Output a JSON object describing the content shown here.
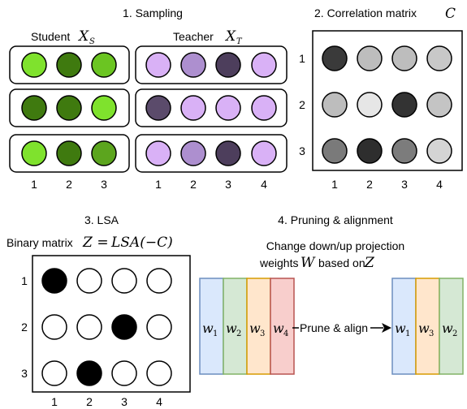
{
  "sampling": {
    "title": "1. Sampling",
    "student_label": "Student",
    "student_var": "X",
    "student_sub": "S",
    "teacher_label": "Teacher",
    "teacher_var": "X",
    "teacher_sub": "T",
    "student_rows": [
      [
        "#7fe22d",
        "#3f7a0f",
        "#6bc522"
      ],
      [
        "#3f7a0f",
        "#3f7a0f",
        "#7fe22d"
      ],
      [
        "#7fe22d",
        "#3f7a0f",
        "#5ca51e"
      ]
    ],
    "teacher_rows": [
      [
        "#d9b1f6",
        "#ad8fcf",
        "#4d3e5c",
        "#d9b1f6"
      ],
      [
        "#5b4b6b",
        "#d9b1f6",
        "#d9b1f6",
        "#d9b1f6"
      ],
      [
        "#d9b1f6",
        "#ad8fcf",
        "#4d3e5c",
        "#d9b1f6"
      ]
    ],
    "student_cols": [
      "1",
      "2",
      "3"
    ],
    "teacher_cols": [
      "1",
      "2",
      "3",
      "4"
    ]
  },
  "correlation": {
    "title": "2. Correlation matrix",
    "var": "C",
    "rows": [
      "1",
      "2",
      "3"
    ],
    "cols": [
      "1",
      "2",
      "3",
      "4"
    ],
    "cells": [
      [
        "#3a3a3a",
        "#bdbdbd",
        "#bdbdbd",
        "#c8c8c8"
      ],
      [
        "#bdbdbd",
        "#e6e6e6",
        "#333333",
        "#c4c4c4"
      ],
      [
        "#7a7a7a",
        "#2e2e2e",
        "#7c7c7c",
        "#d4d4d4"
      ]
    ]
  },
  "lsa": {
    "title": "3. LSA",
    "caption_prefix": "Binary matrix",
    "caption_formula_lhs": "Z",
    "caption_formula_eq": " = ",
    "caption_formula_rhs": "LSA(−C)",
    "rows": [
      "1",
      "2",
      "3"
    ],
    "cols": [
      "1",
      "2",
      "3",
      "4"
    ],
    "binary": [
      [
        1,
        0,
        0,
        0
      ],
      [
        0,
        0,
        1,
        0
      ],
      [
        0,
        1,
        0,
        0
      ]
    ]
  },
  "pruning": {
    "title": "4. Pruning & alignment",
    "caption_line1": "Change down/up projection",
    "caption_line2_prefix": "weights",
    "caption_line2_var": "W",
    "caption_line2_mid": "based on",
    "caption_line2_var2": "Z",
    "arrow_label": "Prune & align",
    "before": [
      {
        "label": "w",
        "sub": "1",
        "fill": "#dae8fc",
        "stroke": "#6c8ebf"
      },
      {
        "label": "w",
        "sub": "2",
        "fill": "#d5e8d4",
        "stroke": "#82b366"
      },
      {
        "label": "w",
        "sub": "3",
        "fill": "#ffe6cc",
        "stroke": "#d79b00"
      },
      {
        "label": "w",
        "sub": "4",
        "fill": "#f8cecc",
        "stroke": "#b85450"
      }
    ],
    "after": [
      {
        "label": "w",
        "sub": "1",
        "fill": "#dae8fc",
        "stroke": "#6c8ebf"
      },
      {
        "label": "w",
        "sub": "3",
        "fill": "#ffe6cc",
        "stroke": "#d79b00"
      },
      {
        "label": "w",
        "sub": "2",
        "fill": "#d5e8d4",
        "stroke": "#82b366"
      }
    ]
  }
}
